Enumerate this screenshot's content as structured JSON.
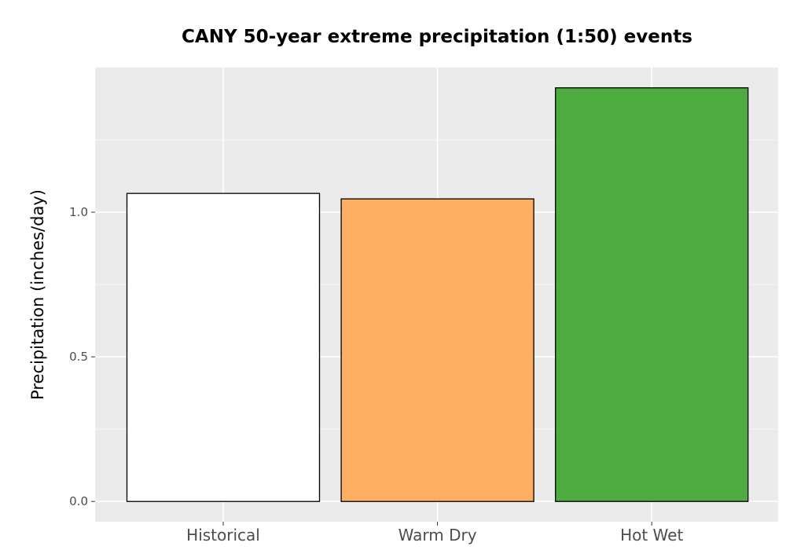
{
  "chart_data": {
    "type": "bar",
    "title": "CANY 50-year extreme precipitation (1:50) events",
    "xlabel": "",
    "ylabel": "Precipitation (inches/day)",
    "categories": [
      "Historical",
      "Warm Dry",
      "Hot Wet"
    ],
    "values": [
      1.065,
      1.046,
      1.43
    ],
    "colors": [
      "#ffffff",
      "#fdae61",
      "#4dab3f"
    ],
    "bar_outline": "#000000",
    "panel_background": "#ebebeb",
    "gridline_color": "#ffffff",
    "ylim": [
      -0.07,
      1.5
    ],
    "yticks": [
      0.0,
      0.5,
      1.0
    ],
    "ytick_labels": [
      "0.0",
      "0.5",
      "1.0"
    ],
    "grid": true,
    "legend": "none"
  }
}
